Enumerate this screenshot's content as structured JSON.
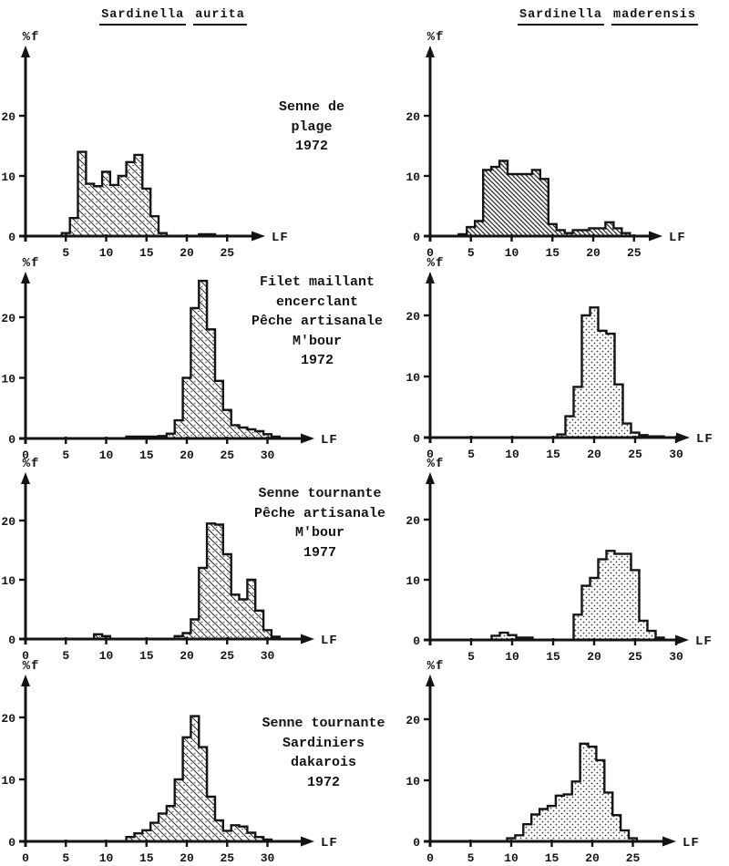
{
  "titles": {
    "left": "Sardinella aurita",
    "left_words": [
      "Sardinella",
      "aurita"
    ],
    "right": "Sardinella maderensis",
    "right_words": [
      "Sardinella",
      "maderensis"
    ]
  },
  "rows": [
    {
      "caption_lines": [
        "Senne de",
        "plage",
        "1972"
      ]
    },
    {
      "caption_lines": [
        "Filet maillant",
        "encerclant",
        "Pêche artisanale",
        "M'bour",
        "1972"
      ]
    },
    {
      "caption_lines": [
        "Senne tournante",
        "Pêche artisanale",
        "M'bour",
        "1977"
      ]
    },
    {
      "caption_lines": [
        "Senne tournante",
        "Sardiniers",
        "dakarois",
        "1972"
      ]
    }
  ],
  "chart_data": [
    {
      "type": "bar",
      "species": "Sardinella aurita",
      "gear": "Senne de plage 1972",
      "row": 1,
      "column": "left",
      "xlabel": "LF",
      "ylabel": "%f",
      "x_ticks": [
        5,
        10,
        15,
        20,
        25
      ],
      "y_ticks": [
        0,
        10,
        20
      ],
      "xlim": [
        0,
        30
      ],
      "ylim": [
        0,
        31
      ],
      "bin_width": 1,
      "hatch": "diag-dots",
      "segments": [
        {
          "start_x": 5,
          "values": [
            0.5,
            3,
            14,
            8.7,
            8.3,
            10.7,
            8.5,
            10,
            12.3,
            13.5,
            7.9,
            3.3,
            0.5
          ]
        },
        {
          "start_x": 22,
          "values": [
            0.3,
            0.3
          ]
        }
      ]
    },
    {
      "type": "bar",
      "species": "Sardinella maderensis",
      "gear": "Senne de plage 1972",
      "row": 1,
      "column": "right",
      "xlabel": "LF",
      "ylabel": "%f",
      "x_ticks": [
        0,
        5,
        10,
        15,
        20,
        25
      ],
      "y_ticks": [
        0,
        10,
        20
      ],
      "xlim": [
        0,
        29
      ],
      "ylim": [
        0,
        31
      ],
      "bin_width": 1,
      "hatch": "diag",
      "segments": [
        {
          "start_x": 4,
          "values": [
            0.3,
            1.5,
            2.5,
            11,
            11.5,
            12.5,
            10.3,
            10.3,
            10.3,
            11,
            9.5,
            2,
            1,
            0.5,
            1,
            1,
            1.3,
            1.3,
            2.3,
            1.3,
            0.5
          ]
        }
      ]
    },
    {
      "type": "bar",
      "species": "Sardinella aurita",
      "gear": "Filet maillant encerclant Pêche artisanale M'bour 1972",
      "row": 2,
      "column": "left",
      "xlabel": "LF",
      "ylabel": "%f",
      "x_ticks": [
        0,
        5,
        10,
        15,
        20,
        25,
        30
      ],
      "y_ticks": [
        0,
        10,
        20
      ],
      "xlim": [
        0,
        36
      ],
      "ylim": [
        0,
        27
      ],
      "bin_width": 1,
      "hatch": "diag-dots",
      "segments": [
        {
          "start_x": 13,
          "values": [
            0.3,
            0.3,
            0.3,
            0.3,
            0.4,
            0.8,
            3,
            10,
            21.5,
            26,
            18,
            9.5,
            4.7,
            2.2,
            1.8,
            1.5,
            1.2,
            0.7,
            0.3
          ]
        }
      ]
    },
    {
      "type": "bar",
      "species": "Sardinella maderensis",
      "gear": "Filet maillant encerclant Pêche artisanale M'bour 1972",
      "row": 2,
      "column": "right",
      "xlabel": "LF",
      "ylabel": "%f",
      "x_ticks": [
        0,
        5,
        10,
        15,
        20,
        25,
        30
      ],
      "y_ticks": [
        0,
        10,
        20
      ],
      "xlim": [
        0,
        32
      ],
      "ylim": [
        0,
        27
      ],
      "bin_width": 1,
      "hatch": "dots",
      "segments": [
        {
          "start_x": 16,
          "values": [
            0.5,
            3.5,
            8.3,
            20,
            21.3,
            17.5,
            17,
            8.7,
            2.3,
            0.8,
            0.4,
            0.2,
            0.2
          ]
        }
      ]
    },
    {
      "type": "bar",
      "species": "Sardinella aurita",
      "gear": "Senne tournante Pêche artisanale M'bour 1977",
      "row": 3,
      "column": "left",
      "xlabel": "LF",
      "ylabel": "%f",
      "x_ticks": [
        0,
        5,
        10,
        15,
        20,
        25,
        30
      ],
      "y_ticks": [
        0,
        10,
        20
      ],
      "xlim": [
        0,
        36
      ],
      "ylim": [
        0,
        27
      ],
      "bin_width": 1,
      "hatch": "diag-dots",
      "segments": [
        {
          "start_x": 9,
          "values": [
            0.8,
            0.5
          ]
        },
        {
          "start_x": 19,
          "values": [
            0.5,
            1,
            3.3,
            12,
            19.5,
            19.3,
            14.3,
            7.5,
            6.7,
            10,
            4.8,
            1.5,
            0.4
          ]
        }
      ]
    },
    {
      "type": "bar",
      "species": "Sardinella maderensis",
      "gear": "Senne tournante Pêche artisanale M'bour 1977",
      "row": 3,
      "column": "right",
      "xlabel": "LF",
      "ylabel": "%f",
      "x_ticks": [
        5,
        10,
        15,
        20,
        25,
        30
      ],
      "y_ticks": [
        0,
        10,
        20
      ],
      "xlim": [
        0,
        32
      ],
      "ylim": [
        0,
        27
      ],
      "bin_width": 1,
      "hatch": "dots",
      "segments": [
        {
          "start_x": 8,
          "values": [
            0.7,
            1.2,
            0.8,
            0.4,
            0.4
          ]
        },
        {
          "start_x": 18,
          "values": [
            4.2,
            9,
            10.3,
            13.4,
            14.8,
            14.3,
            14.3,
            11.6,
            3.2,
            1.5,
            0.4
          ]
        }
      ]
    },
    {
      "type": "bar",
      "species": "Sardinella aurita",
      "gear": "Senne tournante Sardiniers dakarois 1972",
      "row": 4,
      "column": "left",
      "xlabel": "LF",
      "ylabel": "%f",
      "x_ticks": [
        0,
        5,
        10,
        15,
        20,
        25,
        30
      ],
      "y_ticks": [
        0,
        10,
        20
      ],
      "xlim": [
        0,
        36
      ],
      "ylim": [
        0,
        27
      ],
      "bin_width": 1,
      "hatch": "diag-dots",
      "segments": [
        {
          "start_x": 13,
          "values": [
            0.7,
            1.3,
            1.8,
            3,
            4.5,
            5.7,
            10,
            16.8,
            20.2,
            15.2,
            7.2,
            3.4,
            1.7,
            2.6,
            2.4,
            1.4,
            0.7,
            0.3
          ]
        }
      ]
    },
    {
      "type": "bar",
      "species": "Sardinella maderensis",
      "gear": "Senne tournante Sardiniers dakarois 1972",
      "row": 4,
      "column": "right",
      "xlabel": "LF",
      "ylabel": "%f",
      "x_ticks": [
        0,
        5,
        10,
        15,
        20,
        25
      ],
      "y_ticks": [
        0,
        10,
        20
      ],
      "xlim": [
        0,
        30
      ],
      "ylim": [
        0,
        27
      ],
      "bin_width": 1,
      "hatch": "dots",
      "segments": [
        {
          "start_x": 10,
          "values": [
            0.5,
            1,
            2.8,
            4.4,
            5.3,
            5.8,
            7.5,
            7.7,
            9.8,
            16,
            15.5,
            13.3,
            8,
            4.3,
            1.8,
            0.5
          ]
        }
      ]
    }
  ]
}
